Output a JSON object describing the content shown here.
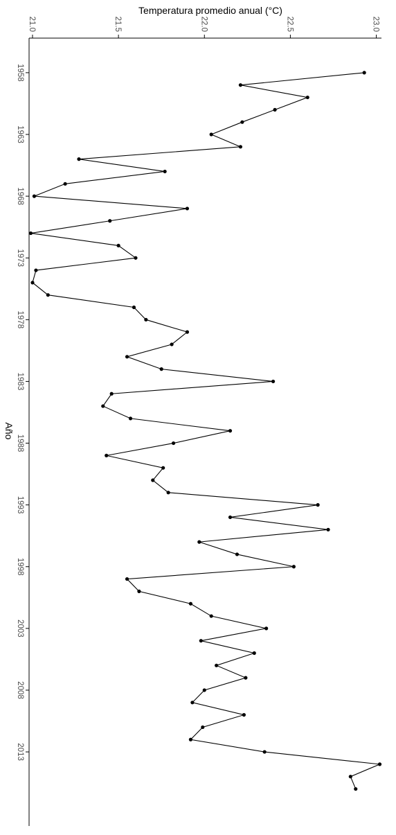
{
  "chart_data": {
    "type": "line",
    "title": "",
    "temp_axis_label": "Temperatura promedio anual (°C)",
    "year_axis_label": "Año",
    "temp_range": [
      20.98,
      23.03
    ],
    "year_range": [
      1955.2,
      2019
    ],
    "temp_ticks": [
      21.0,
      21.5,
      22.0,
      22.5,
      23.0
    ],
    "temp_tick_labels": [
      "21.0",
      "21.5",
      "22.0",
      "22.5",
      "23.0"
    ],
    "year_ticks": [
      1958,
      1963,
      1968,
      1973,
      1978,
      1983,
      1988,
      1993,
      1998,
      2003,
      2008,
      2013
    ],
    "year_tick_labels": [
      "1958",
      "1963",
      "1968",
      "1973",
      "1978",
      "1983",
      "1988",
      "1993",
      "1998",
      "2003",
      "2008",
      "2013"
    ],
    "grid": false,
    "legend": "none",
    "point_color": "#000000",
    "line_color": "#000000",
    "series": [
      {
        "x": [
          1958,
          1959,
          1960,
          1961,
          1962,
          1963,
          1964,
          1965,
          1966,
          1967,
          1968,
          1969,
          1970,
          1971,
          1972,
          1973,
          1974,
          1975,
          1976,
          1977,
          1978,
          1979,
          1980,
          1981,
          1982,
          1983,
          1984,
          1985,
          1986,
          1987,
          1988,
          1989,
          1990,
          1991,
          1992,
          1993,
          1994,
          1995,
          1996,
          1997,
          1998,
          1999,
          2000,
          2001,
          2002,
          2003,
          2004,
          2005,
          2006,
          2007,
          2008,
          2009,
          2010,
          2011,
          2012,
          2013,
          2014,
          2015,
          2016
        ],
        "y": [
          22.93,
          22.21,
          22.6,
          22.41,
          22.22,
          22.04,
          22.21,
          21.27,
          21.77,
          21.19,
          21.01,
          21.9,
          21.45,
          20.99,
          21.5,
          21.6,
          21.02,
          21.0,
          21.09,
          21.59,
          21.66,
          21.9,
          21.81,
          21.55,
          21.75,
          22.4,
          21.46,
          21.41,
          21.57,
          22.15,
          21.82,
          21.43,
          21.76,
          21.7,
          21.79,
          22.66,
          22.15,
          22.72,
          21.97,
          22.19,
          22.52,
          21.55,
          21.62,
          21.92,
          22.04,
          22.36,
          21.98,
          22.29,
          22.07,
          22.24,
          22.0,
          21.93,
          22.23,
          21.99,
          21.92,
          22.35,
          23.02,
          22.85,
          22.88
        ]
      }
    ]
  }
}
